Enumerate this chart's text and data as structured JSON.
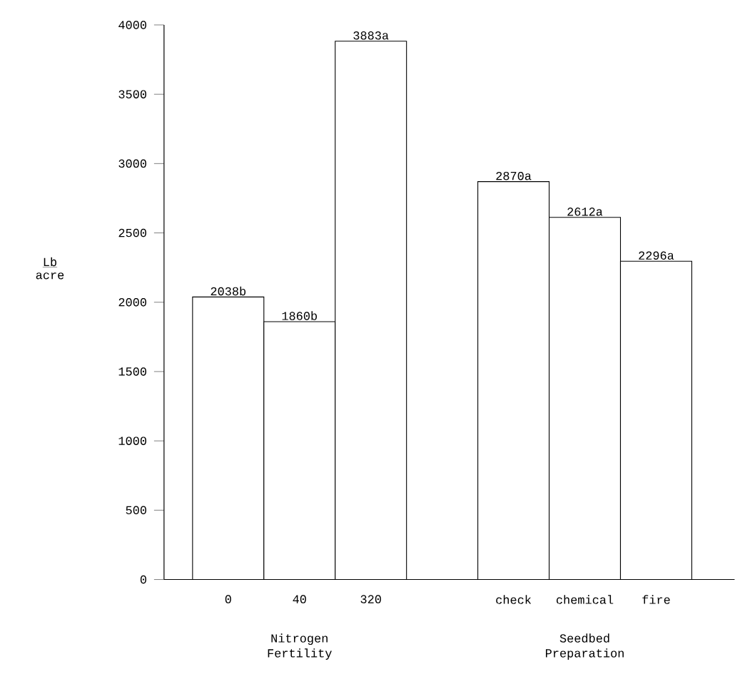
{
  "chart_data": {
    "type": "bar",
    "categories": [
      "0",
      "40",
      "320",
      null,
      "check",
      "chemical",
      "fire"
    ],
    "values": [
      2038,
      1860,
      3883,
      null,
      2870,
      2612,
      2296
    ],
    "value_labels": [
      "2038b",
      "1860b",
      "3883a",
      null,
      "2870a",
      "2612a",
      "2296a"
    ],
    "colors": [
      "#ffffff",
      "#ffffff",
      "#ffffff",
      "#ffffff",
      "#ffffff",
      "#ffffff",
      "#ffffff"
    ],
    "annotations": [
      "Lb",
      "acre",
      "Nitrogen Fertility",
      "Seedbed Preparation"
    ],
    "ylim": [
      0,
      4000
    ],
    "yticks": [
      0,
      500,
      1000,
      1500,
      2000,
      2500,
      3000,
      3500,
      4000
    ],
    "grid": false
  }
}
